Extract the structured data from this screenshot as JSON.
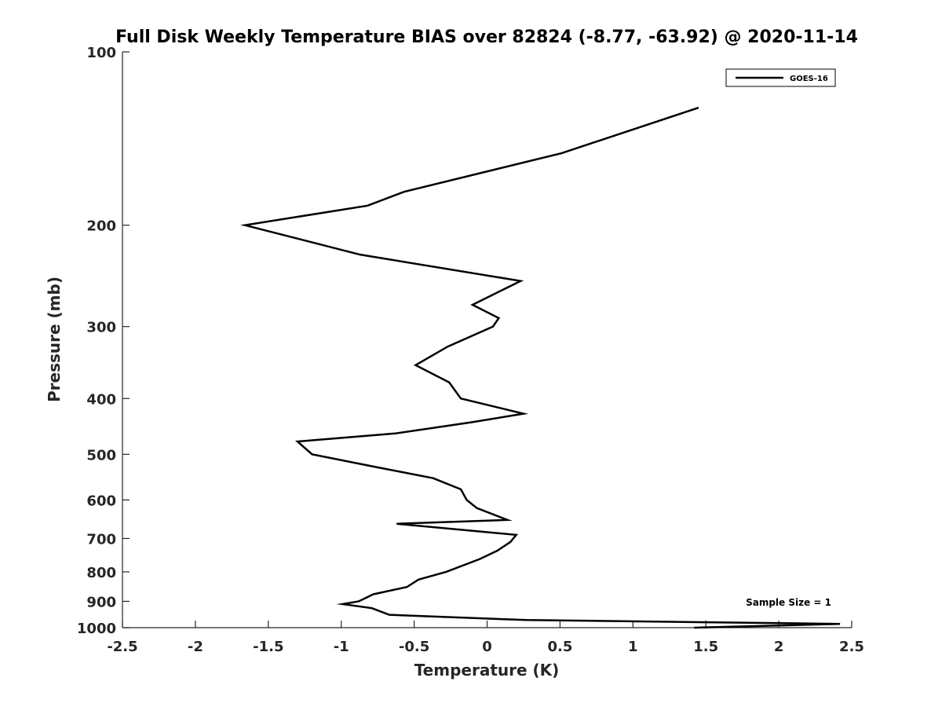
{
  "chart_data": {
    "type": "line",
    "title": "Full Disk Weekly Temperature BIAS over 82824 (-8.77, -63.92) @ 2020-11-14",
    "xlabel": "Temperature (K)",
    "ylabel": "Pressure (mb)",
    "xlim": [
      -2.5,
      2.5
    ],
    "ylim": [
      100,
      1000
    ],
    "y_scale": "log",
    "y_reversed": true,
    "grid": false,
    "legend_position": "top-right",
    "x_ticks": [
      -2.5,
      -2,
      -1.5,
      -1,
      -0.5,
      0,
      0.5,
      1,
      1.5,
      2,
      2.5
    ],
    "x_tick_labels": [
      "-2.5",
      "-2",
      "-1.5",
      "-1",
      "-0.5",
      "0",
      "0.5",
      "1",
      "1.5",
      "2",
      "2.5"
    ],
    "y_ticks": [
      100,
      200,
      300,
      400,
      500,
      600,
      700,
      800,
      900,
      1000
    ],
    "y_tick_labels": [
      "100",
      "200",
      "300",
      "400",
      "500",
      "600",
      "700",
      "800",
      "900",
      "1000"
    ],
    "annotation": "Sample Size = 1",
    "series": [
      {
        "name": "GOES-16",
        "color": "#000000",
        "points": [
          {
            "x": 1.45,
            "p": 125
          },
          {
            "x": 0.51,
            "p": 150
          },
          {
            "x": -0.57,
            "p": 175
          },
          {
            "x": -0.82,
            "p": 185
          },
          {
            "x": -1.66,
            "p": 200
          },
          {
            "x": -0.87,
            "p": 225
          },
          {
            "x": 0.23,
            "p": 250
          },
          {
            "x": -0.1,
            "p": 275
          },
          {
            "x": 0.08,
            "p": 290
          },
          {
            "x": 0.04,
            "p": 300
          },
          {
            "x": -0.27,
            "p": 325
          },
          {
            "x": -0.49,
            "p": 350
          },
          {
            "x": -0.26,
            "p": 375
          },
          {
            "x": -0.18,
            "p": 400
          },
          {
            "x": 0.25,
            "p": 425
          },
          {
            "x": -0.11,
            "p": 440
          },
          {
            "x": -0.63,
            "p": 460
          },
          {
            "x": -1.3,
            "p": 475
          },
          {
            "x": -1.2,
            "p": 500
          },
          {
            "x": -0.78,
            "p": 525
          },
          {
            "x": -0.37,
            "p": 550
          },
          {
            "x": -0.18,
            "p": 575
          },
          {
            "x": -0.14,
            "p": 600
          },
          {
            "x": -0.07,
            "p": 620
          },
          {
            "x": 0.14,
            "p": 650
          },
          {
            "x": -0.62,
            "p": 660
          },
          {
            "x": 0.2,
            "p": 690
          },
          {
            "x": 0.16,
            "p": 710
          },
          {
            "x": 0.07,
            "p": 735
          },
          {
            "x": -0.05,
            "p": 760
          },
          {
            "x": -0.28,
            "p": 800
          },
          {
            "x": -0.47,
            "p": 825
          },
          {
            "x": -0.55,
            "p": 850
          },
          {
            "x": -0.78,
            "p": 875
          },
          {
            "x": -0.88,
            "p": 900
          },
          {
            "x": -0.99,
            "p": 910
          },
          {
            "x": -0.79,
            "p": 925
          },
          {
            "x": -0.67,
            "p": 950
          },
          {
            "x": 0.27,
            "p": 970
          },
          {
            "x": 2.42,
            "p": 985
          },
          {
            "x": 1.42,
            "p": 1000
          }
        ]
      }
    ]
  }
}
